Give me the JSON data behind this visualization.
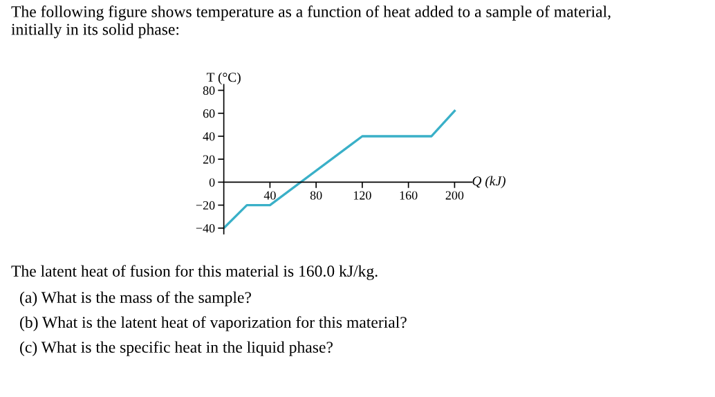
{
  "chart_data": {
    "type": "line",
    "title": "The following figure shows temperature as a function of heat added to a sample of material,\ninitially in its solid phase:",
    "xlabel": "Q (kJ)",
    "ylabel": "T (°C)",
    "x": [
      0,
      20,
      40,
      120,
      180,
      200
    ],
    "series": [
      {
        "color": "#3ab0c8",
        "values": [
          -40,
          -20,
          -20,
          40,
          40,
          62
        ]
      }
    ],
    "xlim": [
      0,
      215
    ],
    "ylim": [
      -45,
      85
    ],
    "xticks": [
      40,
      80,
      120,
      160,
      200
    ],
    "yticks": [
      -40,
      -20,
      0,
      20,
      40,
      60,
      80
    ],
    "grid": false,
    "legend": false,
    "marker": "none",
    "line_style": "solid",
    "annotations": [
      "The latent heat of fusion for this material is 160.0 kJ/kg.",
      "(a) What is the mass of the sample?",
      "(b) What is the latent heat of vaporization for this material?",
      "(c) What is the specific heat in the liquid phase?"
    ]
  }
}
